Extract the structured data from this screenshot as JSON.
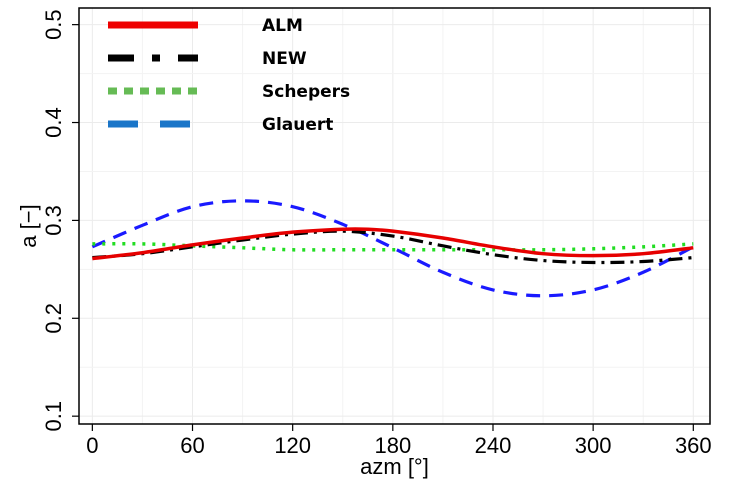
{
  "chart_data": {
    "type": "line",
    "title": "",
    "xlabel": "azm [°]",
    "ylabel": "a [−]",
    "xlim": [
      -8,
      370
    ],
    "ylim": [
      0.092,
      0.517
    ],
    "xticks": [
      0,
      60,
      120,
      180,
      240,
      300,
      360
    ],
    "yticks": [
      0.1,
      0.2,
      0.3,
      0.4,
      0.5
    ],
    "grid": true,
    "legend_position": "top-left",
    "series": [
      {
        "name": "ALM",
        "color": "#e60000",
        "dash": "solid",
        "x": [
          0,
          30,
          60,
          90,
          120,
          150,
          165,
          180,
          210,
          240,
          270,
          300,
          330,
          360
        ],
        "y": [
          0.261,
          0.267,
          0.275,
          0.282,
          0.288,
          0.291,
          0.291,
          0.289,
          0.282,
          0.273,
          0.266,
          0.264,
          0.266,
          0.272
        ]
      },
      {
        "name": "NEW",
        "color": "#000000",
        "dash": "dashdot",
        "x": [
          0,
          30,
          60,
          90,
          120,
          150,
          180,
          210,
          240,
          270,
          300,
          330,
          360
        ],
        "y": [
          0.262,
          0.266,
          0.273,
          0.28,
          0.286,
          0.289,
          0.284,
          0.274,
          0.265,
          0.259,
          0.257,
          0.258,
          0.262
        ]
      },
      {
        "name": "Schepers",
        "color": "#22dd22",
        "dash": "dotted",
        "x": [
          0,
          30,
          60,
          90,
          120,
          150,
          180,
          210,
          240,
          270,
          300,
          330,
          360
        ],
        "y": [
          0.276,
          0.276,
          0.274,
          0.272,
          0.27,
          0.27,
          0.27,
          0.27,
          0.27,
          0.27,
          0.271,
          0.273,
          0.276
        ]
      },
      {
        "name": "Glauert",
        "color": "#1a1aff",
        "dash": "dashed",
        "x": [
          0,
          30,
          60,
          90,
          120,
          150,
          180,
          210,
          240,
          270,
          300,
          330,
          360
        ],
        "y": [
          0.273,
          0.295,
          0.314,
          0.32,
          0.314,
          0.296,
          0.272,
          0.247,
          0.229,
          0.223,
          0.229,
          0.247,
          0.273
        ]
      }
    ],
    "legend": [
      {
        "label": "ALM",
        "color": "#ee0000",
        "dash": "solid"
      },
      {
        "label": "NEW",
        "color": "#000000",
        "dash": "dashdot"
      },
      {
        "label": "Schepers",
        "color": "#66bb55",
        "dash": "dotted"
      },
      {
        "label": "Glauert",
        "color": "#1a75c8",
        "dash": "dashed"
      }
    ]
  }
}
